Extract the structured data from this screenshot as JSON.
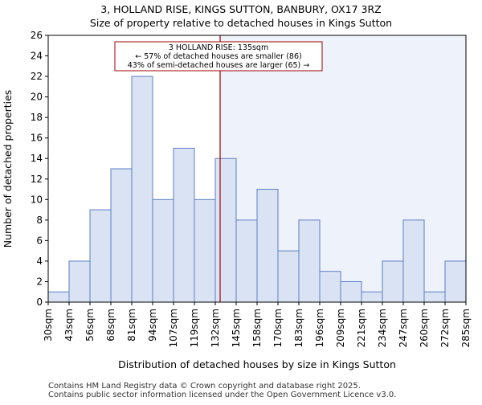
{
  "chart_data": {
    "type": "bar",
    "title_line1": "3, HOLLAND RISE, KINGS SUTTON, BANBURY, OX17 3RZ",
    "title_line2": "Size of property relative to detached houses in Kings Sutton",
    "xlabel": "Distribution of detached houses by size in Kings Sutton",
    "ylabel": "Number of detached properties",
    "bin_edges": [
      30,
      43,
      56,
      68,
      81,
      94,
      107,
      119,
      132,
      145,
      158,
      170,
      183,
      196,
      209,
      221,
      234,
      247,
      260,
      272,
      285
    ],
    "tick_labels": [
      "30sqm",
      "43sqm",
      "56sqm",
      "68sqm",
      "81sqm",
      "94sqm",
      "107sqm",
      "119sqm",
      "132sqm",
      "145sqm",
      "158sqm",
      "170sqm",
      "183sqm",
      "196sqm",
      "209sqm",
      "221sqm",
      "234sqm",
      "247sqm",
      "260sqm",
      "272sqm",
      "285sqm"
    ],
    "values": [
      1,
      4,
      9,
      13,
      22,
      10,
      15,
      10,
      14,
      8,
      11,
      5,
      8,
      3,
      2,
      1,
      4,
      8,
      1,
      4
    ],
    "ylim": [
      0,
      26
    ],
    "yticks": [
      0,
      2,
      4,
      6,
      8,
      10,
      12,
      14,
      16,
      18,
      20,
      22,
      24,
      26
    ],
    "grid": false,
    "property_marker": 135,
    "annotation": {
      "line1": "3 HOLLAND RISE: 135sqm",
      "line2": "← 57% of detached houses are smaller (86)",
      "line3": "43% of semi-detached houses are larger (65) →"
    },
    "colors": {
      "bar_fill": "#dae3f3",
      "bar_edge": "#5b7fc4",
      "marker_line": "#a00000",
      "shade": "#eef2fb",
      "annot_border": "#a00000"
    }
  },
  "footer": {
    "line1": "Contains HM Land Registry data © Crown copyright and database right 2025.",
    "line2": "Contains public sector information licensed under the Open Government Licence v3.0."
  }
}
